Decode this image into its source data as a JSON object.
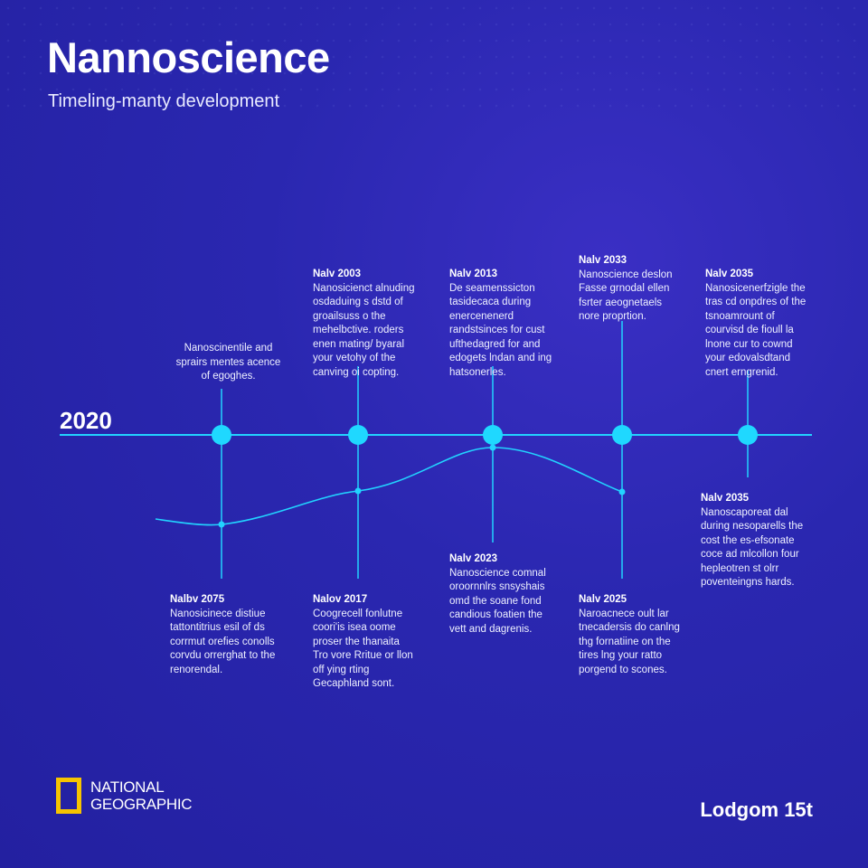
{
  "header": {
    "title": "Nannoscience",
    "subtitle": "Timeling-manty development"
  },
  "timeline": {
    "year_label": "2020",
    "accent_color": "#22d3ff",
    "events_top": [
      {
        "head": "",
        "text": "Nanoscinentile and sprairs mentes acence of egoghes."
      },
      {
        "head": "Nalv 2003",
        "text": "Nanosicienct alnuding osdaduing s dstd of groailsuss o the mehelbctive. roders enen mating/ byaral your vetohy of the canving oi copting."
      },
      {
        "head": "Nalv 2013",
        "text": "De seamenssicton tasidecaca during enercenenerd randstsinces for cust ufthedagred for and edogets lndan and ing hatsonerles."
      },
      {
        "head": "Nalv 2033",
        "text": "Nanoscience deslon Fasse grnodal ellen fsrter aeognetaels nore proprtion."
      },
      {
        "head": "Nalv 2035",
        "text": "Nanosicenerfzigle the tras cd onpdres of the tsnoamrount of courvisd de fioull la lnone cur to cownd your edovalsdtand cnert erngrenid."
      }
    ],
    "events_bottom": [
      {
        "head": "Nalbv 2075",
        "text": "Nanosicinece distiue tattontitrius esil of ds corrmut orefies conolls corvdu orrerghat to the renorendal."
      },
      {
        "head": "Nalov 2017",
        "text": "Coogrecell fonlutne coori'is isea oome proser the thanaita Tro vore Rritue or llon off ying rting Gecaphland sont."
      },
      {
        "head": "Nalv 2023",
        "text": "Nanoscience comnal oroornnlrs snsyshais omd the soane fond candious foatien the vett and dagrenis."
      },
      {
        "head": "Nalv 2025",
        "text": "Naroacnece oult lar tnecadersis do canlng thg fornatiine on the tires lng your ratto porgend to scones."
      },
      {
        "head": "Nalv 2035",
        "text": "Nanoscaporeat dal during nesoparells the cost the es-efsonate coce ad mlcollon four hepleotren st olrr poventeingns hards."
      }
    ],
    "nodes": [
      245,
      396,
      545,
      688,
      827
    ],
    "curve": [
      {
        "x": 172,
        "y": 575
      },
      {
        "x": 245,
        "y": 580
      },
      {
        "x": 396,
        "y": 543
      },
      {
        "x": 545,
        "y": 495
      },
      {
        "x": 688,
        "y": 544
      }
    ]
  },
  "footer": {
    "logo_line1": "NATIONAL",
    "logo_line2": "GEOGRAPHIC",
    "right_text": "Lodgom 15t"
  }
}
